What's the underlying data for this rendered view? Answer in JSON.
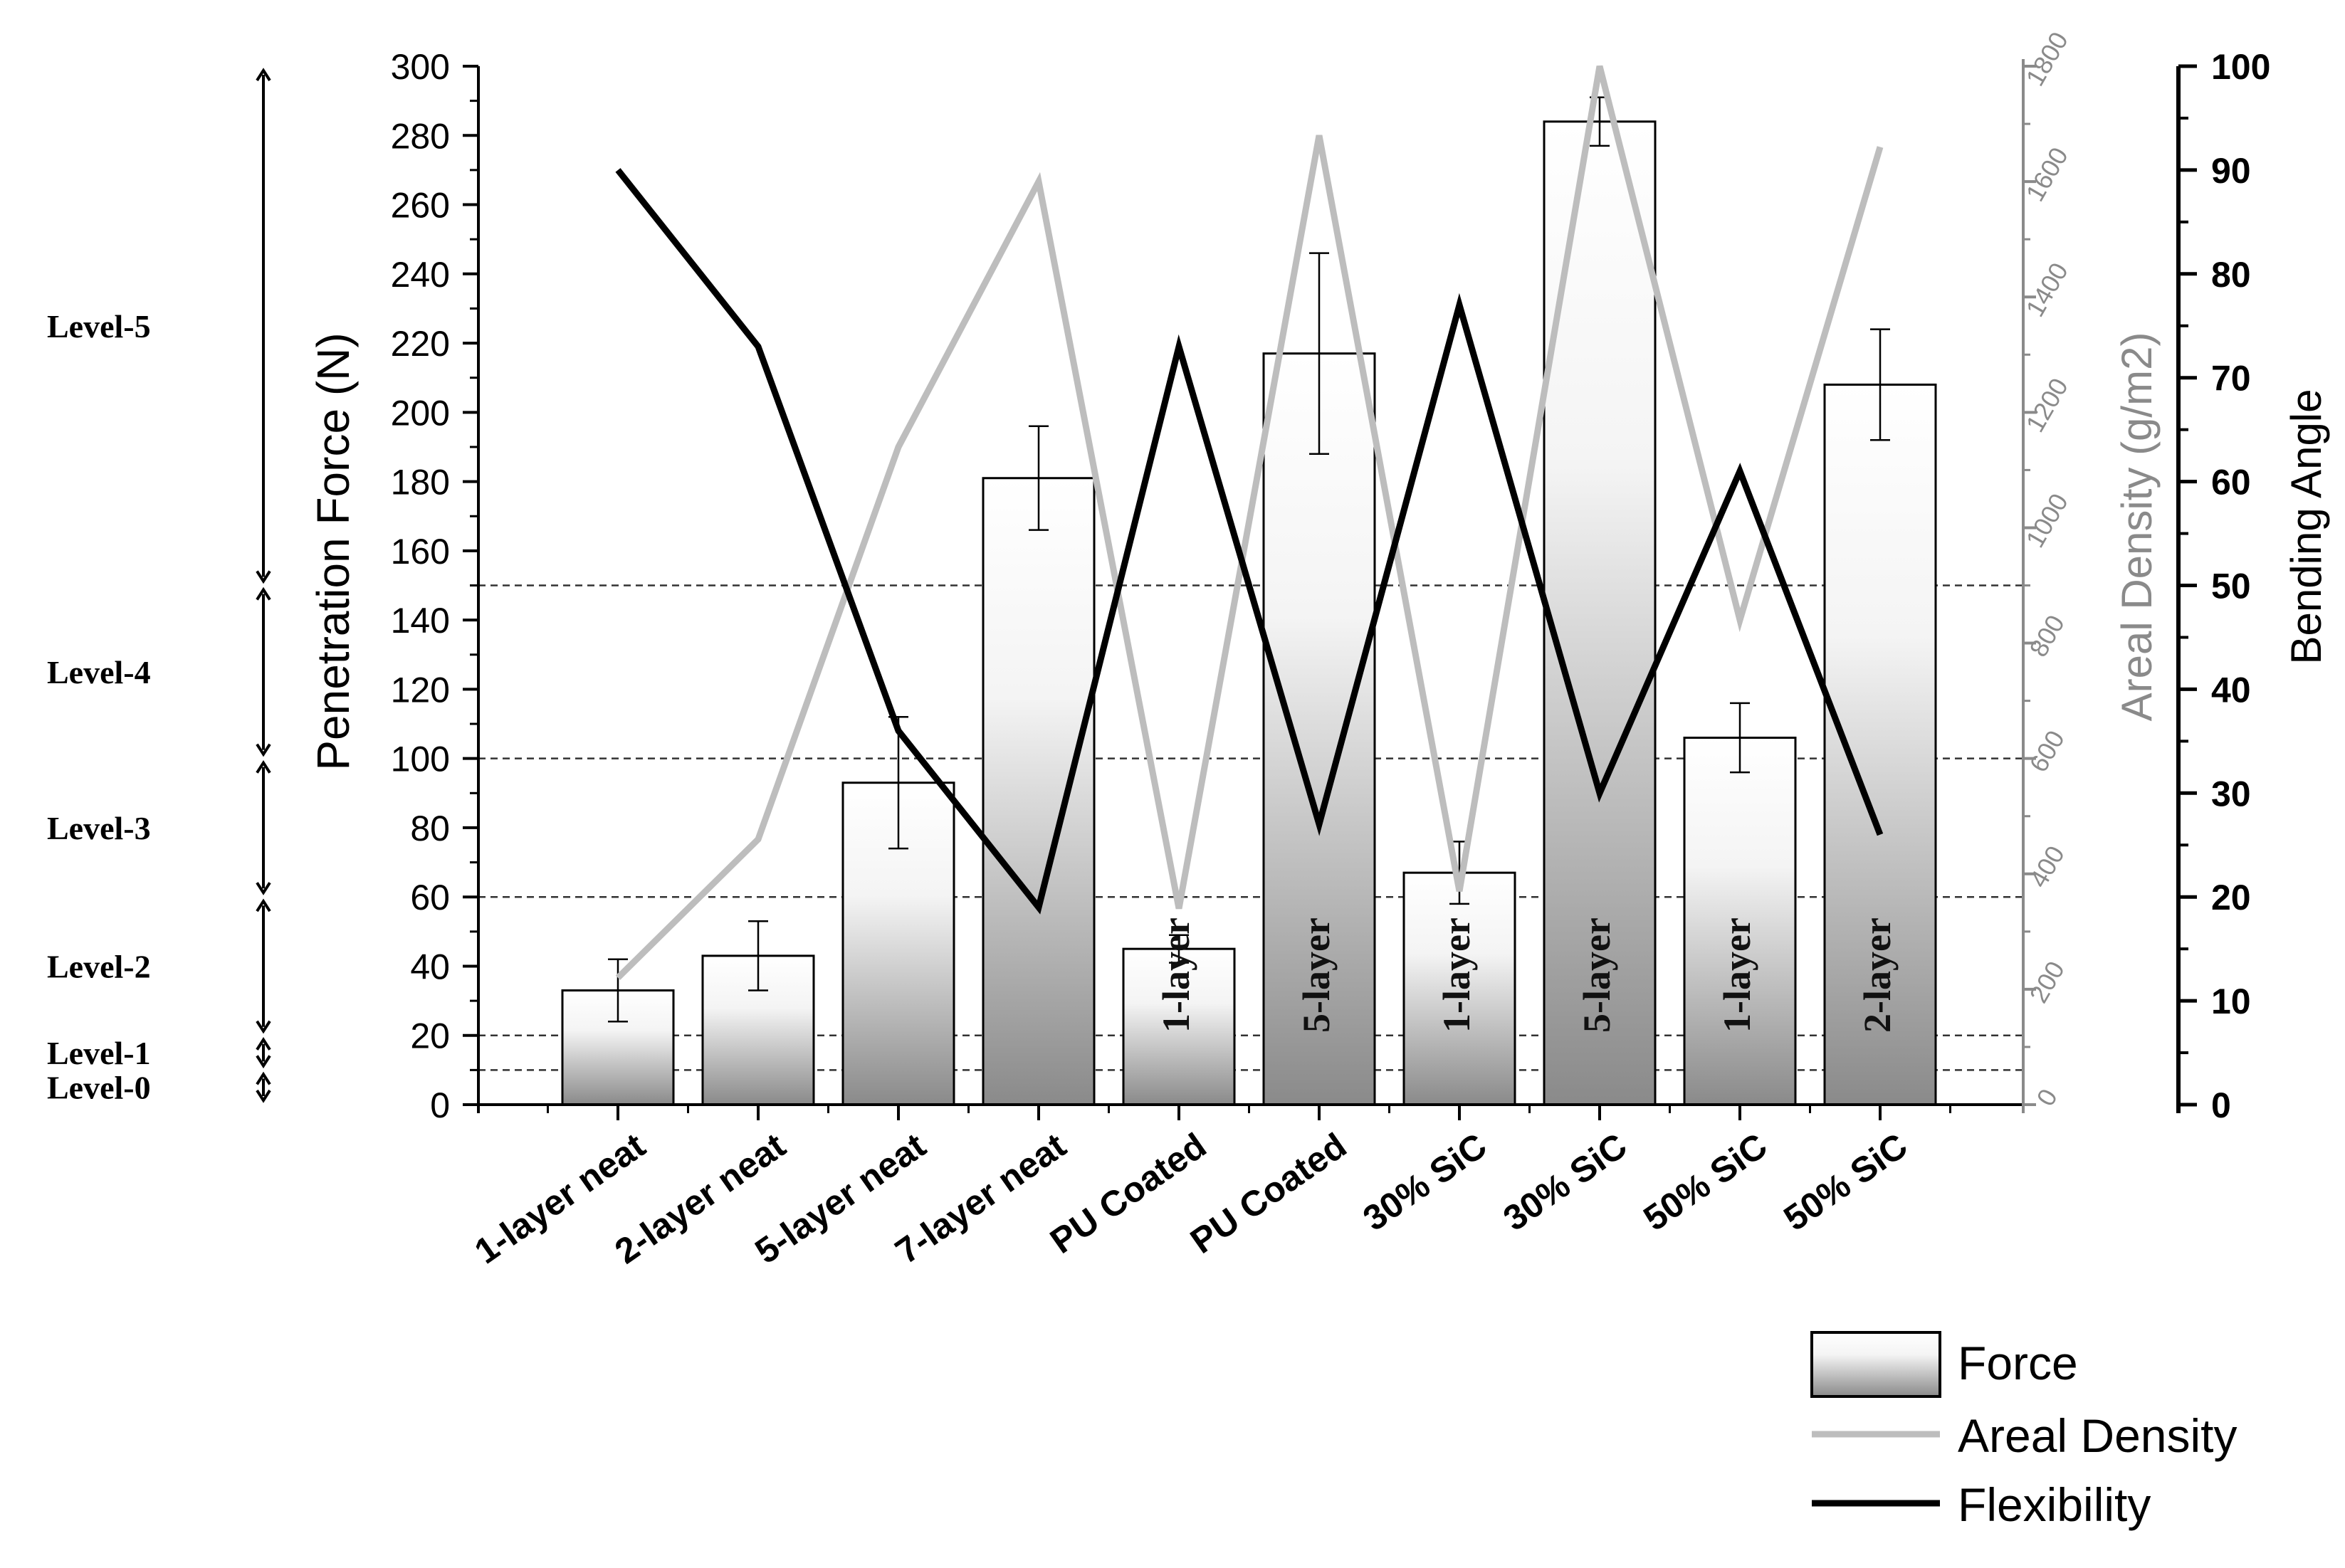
{
  "chart_data": {
    "type": "bar",
    "categories": [
      "1-layer neat",
      "2-layer neat",
      "5-layer neat",
      "7-layer neat",
      "PU Coated",
      "PU Coated",
      "30% SiC",
      "30% SiC",
      "50% SiC",
      "50% SiC"
    ],
    "bar_inner_labels": [
      "",
      "",
      "",
      "",
      "1-layer",
      "5-layer",
      "1-layer",
      "5-layer",
      "1-layer",
      "2-layer"
    ],
    "series": [
      {
        "name": "Force",
        "kind": "bar",
        "axis": "left",
        "values": [
          33,
          43,
          93,
          181,
          45,
          217,
          67,
          284,
          106,
          208
        ],
        "error": [
          9,
          10,
          19,
          15,
          4,
          29,
          9,
          7,
          10,
          16
        ],
        "color": "#808080"
      },
      {
        "name": "Areal Density",
        "kind": "line",
        "axis": "right1",
        "values": [
          220,
          460,
          1140,
          1600,
          340,
          1680,
          370,
          1800,
          840,
          1660
        ],
        "color": "#bdbdbd"
      },
      {
        "name": "Flexibility",
        "kind": "line",
        "axis": "right2",
        "values": [
          90,
          73,
          36,
          19,
          73,
          27,
          77,
          30,
          61,
          26
        ],
        "color": "#000000"
      }
    ],
    "ylabel": "Penetration Force (N)",
    "y2label": "Areal Density (g/m2)",
    "y3label": "Bending Angle",
    "ylim": [
      0,
      300
    ],
    "y2lim": [
      0,
      1800
    ],
    "y3lim": [
      0,
      100
    ],
    "yticks": [
      "0",
      "20",
      "40",
      "60",
      "80",
      "100",
      "120",
      "140",
      "160",
      "180",
      "200",
      "220",
      "240",
      "260",
      "280",
      "300"
    ],
    "y2ticks": [
      "0",
      "200",
      "400",
      "600",
      "800",
      "1000",
      "1200",
      "1400",
      "1600",
      "1800"
    ],
    "y3ticks": [
      "0",
      "10",
      "20",
      "30",
      "40",
      "50",
      "60",
      "70",
      "80",
      "90",
      "100"
    ],
    "levels": [
      {
        "label": "Level-5",
        "from": 150,
        "to": 300
      },
      {
        "label": "Level-4",
        "from": 100,
        "to": 150
      },
      {
        "label": "Level-3",
        "from": 60,
        "to": 100
      },
      {
        "label": "Level-2",
        "from": 20,
        "to": 60
      },
      {
        "label": "Level-1",
        "from": 10,
        "to": 20
      },
      {
        "label": "Level-0",
        "from": 0,
        "to": 10
      }
    ],
    "level_lines": [
      10,
      20,
      60,
      100,
      150
    ],
    "legend": {
      "position": "bottom-right",
      "entries": [
        "Force",
        "Areal Density",
        "Flexibility"
      ]
    }
  }
}
